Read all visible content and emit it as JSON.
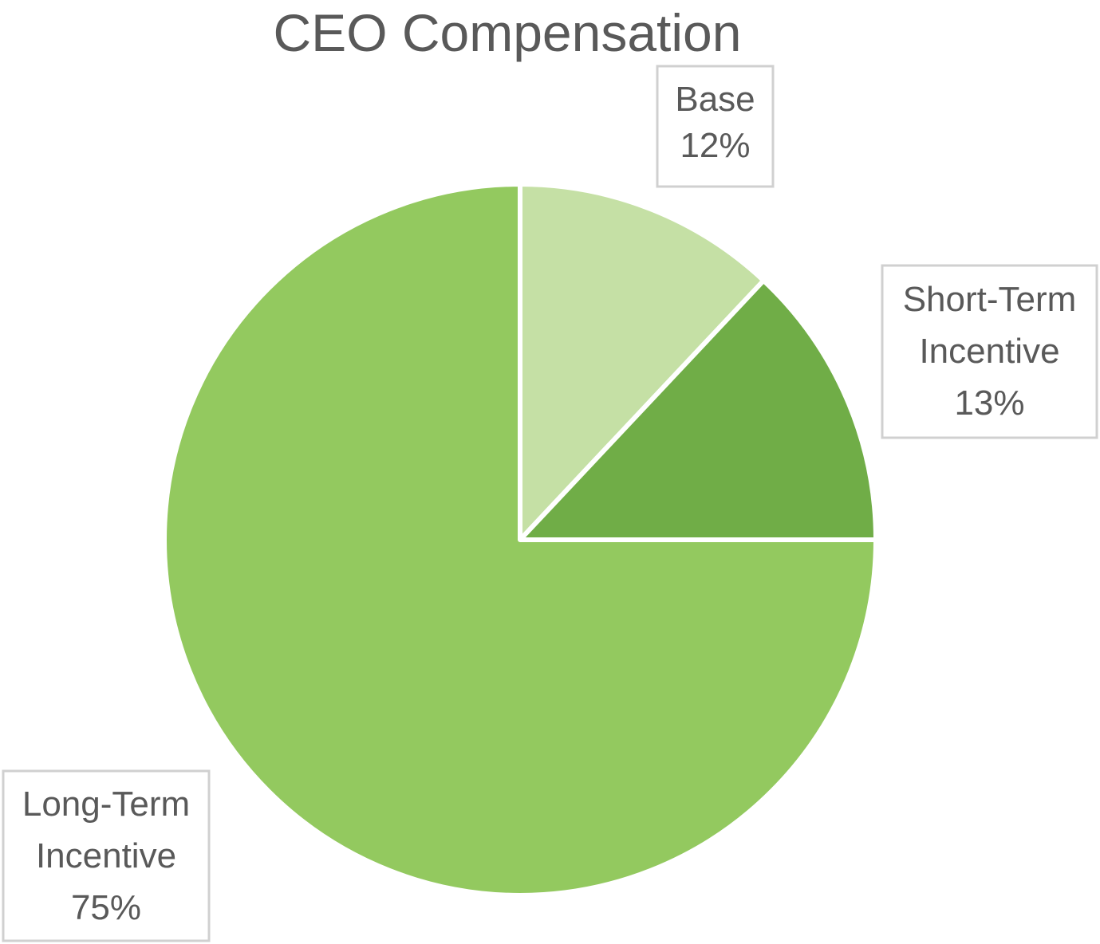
{
  "chart_data": {
    "type": "pie",
    "title": "CEO Compensation",
    "start_angle_deg": 0,
    "direction": "clockwise",
    "slices": [
      {
        "name": "Base",
        "label_lines": [
          "Base",
          "12%"
        ],
        "value": 12,
        "color": "#c5e0a5"
      },
      {
        "name": "Short-Term Incentive",
        "label_lines": [
          "Short-Term",
          "Incentive",
          "13%"
        ],
        "value": 13,
        "color": "#70ad47"
      },
      {
        "name": "Long-Term Incentive",
        "label_lines": [
          "Long-Term",
          "Incentive",
          "75%"
        ],
        "value": 75,
        "color": "#93c95f"
      }
    ]
  }
}
